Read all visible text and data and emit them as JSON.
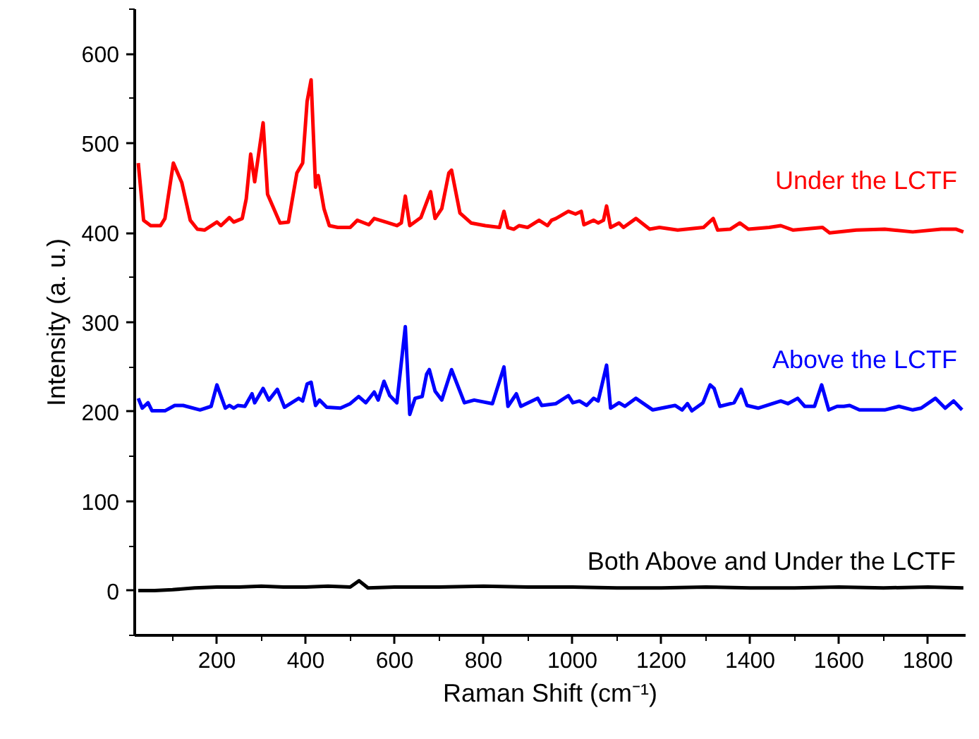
{
  "chart_data": {
    "type": "line",
    "xlabel": "Raman Shift (cm⁻¹)",
    "ylabel": "Intensity (a. u.)",
    "xlim": [
      15,
      1885
    ],
    "ylim": [
      -50,
      650
    ],
    "xticks": [
      200,
      400,
      600,
      800,
      1000,
      1200,
      1400,
      1600,
      1800
    ],
    "yticks": [
      0,
      100,
      200,
      300,
      400,
      500,
      600
    ],
    "grid": false,
    "marker": "none",
    "line_style": "solid",
    "series": [
      {
        "name": "Under the LCTF",
        "color": "#ff0000",
        "x": [
          23,
          35,
          51,
          73,
          83,
          102,
          121,
          140,
          156,
          172,
          200,
          209,
          228,
          238,
          257,
          266,
          276,
          285,
          304,
          314,
          342,
          361,
          380,
          393,
          403,
          412,
          422,
          428,
          441,
          453,
          472,
          500,
          516,
          542,
          554,
          580,
          605,
          615,
          624,
          634,
          659,
          681,
          691,
          706,
          722,
          728,
          747,
          772,
          804,
          836,
          846,
          855,
          868,
          880,
          899,
          925,
          944,
          953,
          963,
          991,
          1007,
          1020,
          1026,
          1048,
          1058,
          1070,
          1077,
          1086,
          1105,
          1115,
          1143,
          1174,
          1196,
          1237,
          1295,
          1317,
          1327,
          1355,
          1377,
          1396,
          1443,
          1469,
          1497,
          1563,
          1579,
          1639,
          1703,
          1766,
          1830,
          1864,
          1880
        ],
        "values": [
          478,
          414,
          408,
          408,
          416,
          478,
          456,
          414,
          404,
          403,
          412,
          408,
          417,
          412,
          416,
          438,
          488,
          457,
          523,
          443,
          411,
          412,
          467,
          478,
          547,
          571,
          451,
          464,
          427,
          408,
          406,
          406,
          414,
          409,
          416,
          412,
          408,
          411,
          441,
          408,
          417,
          446,
          416,
          427,
          467,
          470,
          422,
          411,
          408,
          406,
          424,
          406,
          404,
          408,
          406,
          414,
          408,
          414,
          416,
          424,
          421,
          424,
          409,
          414,
          411,
          414,
          430,
          406,
          411,
          406,
          416,
          404,
          406,
          403,
          406,
          416,
          403,
          404,
          411,
          404,
          406,
          408,
          403,
          406,
          400,
          403,
          404,
          401,
          404,
          404,
          401
        ]
      },
      {
        "name": "Above the LCTF",
        "color": "#0000ff",
        "x": [
          23,
          32,
          45,
          54,
          83,
          105,
          124,
          162,
          187,
          200,
          219,
          228,
          238,
          247,
          263,
          279,
          285,
          304,
          317,
          336,
          352,
          384,
          393,
          403,
          412,
          422,
          431,
          447,
          478,
          500,
          519,
          535,
          554,
          563,
          576,
          589,
          605,
          624,
          634,
          646,
          662,
          672,
          678,
          691,
          706,
          728,
          757,
          779,
          820,
          846,
          855,
          874,
          884,
          922,
          931,
          963,
          991,
          1001,
          1016,
          1032,
          1048,
          1058,
          1077,
          1086,
          1105,
          1118,
          1143,
          1181,
          1231,
          1247,
          1259,
          1269,
          1294,
          1310,
          1319,
          1332,
          1364,
          1380,
          1393,
          1418,
          1469,
          1485,
          1507,
          1523,
          1545,
          1561,
          1577,
          1596,
          1611,
          1624,
          1646,
          1703,
          1735,
          1766,
          1785,
          1817,
          1839,
          1858,
          1877
        ],
        "values": [
          215,
          204,
          210,
          201,
          201,
          207,
          207,
          202,
          206,
          230,
          204,
          207,
          204,
          207,
          206,
          220,
          210,
          226,
          213,
          225,
          205,
          215,
          212,
          231,
          233,
          207,
          213,
          205,
          204,
          209,
          217,
          210,
          222,
          213,
          234,
          218,
          210,
          295,
          197,
          215,
          217,
          242,
          247,
          223,
          213,
          247,
          210,
          213,
          209,
          250,
          206,
          220,
          206,
          215,
          207,
          209,
          218,
          210,
          212,
          207,
          215,
          212,
          252,
          204,
          210,
          206,
          215,
          202,
          207,
          202,
          209,
          201,
          210,
          230,
          226,
          206,
          210,
          225,
          207,
          204,
          212,
          209,
          215,
          206,
          206,
          230,
          202,
          206,
          206,
          207,
          202,
          202,
          206,
          202,
          204,
          215,
          204,
          212,
          202
        ]
      },
      {
        "name": "Both Above and Under the LCTF",
        "color": "#000000",
        "x": [
          23,
          60,
          100,
          150,
          200,
          250,
          300,
          350,
          400,
          450,
          500,
          520,
          540,
          600,
          700,
          800,
          900,
          1000,
          1100,
          1200,
          1300,
          1400,
          1500,
          1600,
          1700,
          1800,
          1880
        ],
        "values": [
          0,
          0,
          1,
          3,
          4,
          4,
          5,
          4,
          4,
          5,
          4,
          11,
          3,
          4,
          4,
          5,
          4,
          4,
          3,
          3,
          4,
          3,
          3,
          4,
          3,
          4,
          3
        ]
      }
    ]
  }
}
